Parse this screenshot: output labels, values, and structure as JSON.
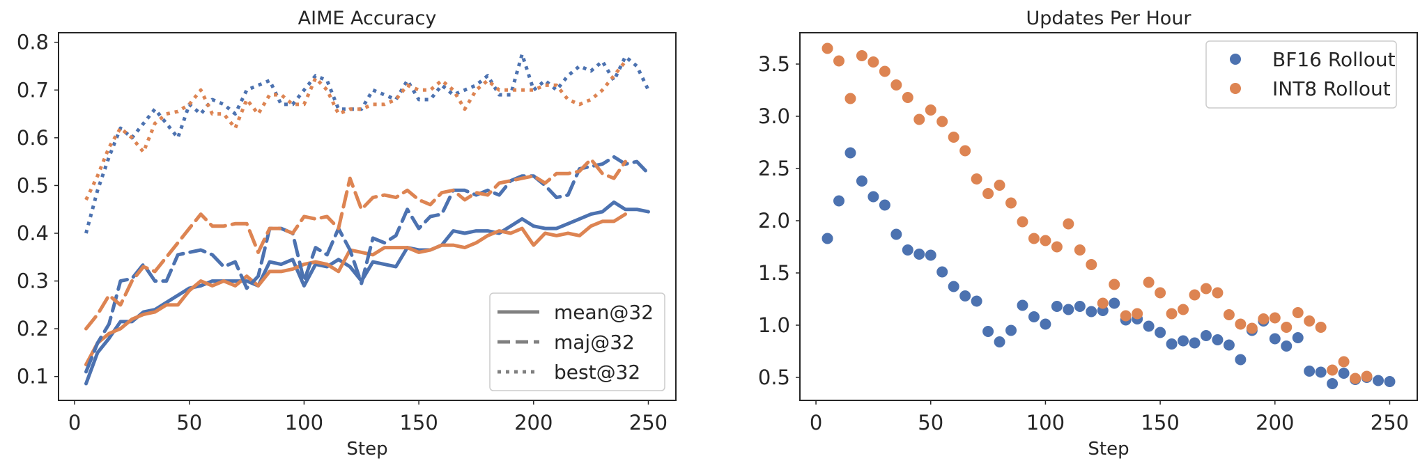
{
  "chart_data": [
    {
      "type": "line",
      "title": "AIME Accuracy",
      "xlabel": "Step",
      "ylabel": "",
      "xlim": [
        -7,
        262
      ],
      "ylim": [
        0.05,
        0.82
      ],
      "xticks": [
        0,
        50,
        100,
        150,
        200,
        250
      ],
      "yticks": [
        0.1,
        0.2,
        0.3,
        0.4,
        0.5,
        0.6,
        0.7,
        0.8
      ],
      "legend_position": "lower-right",
      "grid": false,
      "colors": {
        "blue": "#4c72b0",
        "orange": "#dd8452",
        "legend_line": "#808080"
      },
      "legend": [
        {
          "label": "mean@32",
          "style": "solid"
        },
        {
          "label": "maj@32",
          "style": "dashed"
        },
        {
          "label": "best@32",
          "style": "dotted"
        }
      ],
      "series": [
        {
          "color": "blue",
          "style": "solid",
          "x": [
            5,
            10,
            15,
            20,
            25,
            30,
            35,
            40,
            45,
            50,
            55,
            60,
            65,
            70,
            75,
            80,
            85,
            90,
            95,
            100,
            105,
            110,
            115,
            120,
            125,
            130,
            135,
            140,
            145,
            150,
            155,
            160,
            165,
            170,
            175,
            180,
            185,
            190,
            195,
            200,
            205,
            210,
            215,
            220,
            225,
            230,
            235,
            240,
            245,
            250
          ],
          "y": [
            0.085,
            0.15,
            0.18,
            0.215,
            0.215,
            0.235,
            0.24,
            0.255,
            0.27,
            0.285,
            0.29,
            0.3,
            0.3,
            0.3,
            0.3,
            0.29,
            0.34,
            0.335,
            0.345,
            0.29,
            0.335,
            0.33,
            0.345,
            0.33,
            0.3,
            0.34,
            0.335,
            0.33,
            0.37,
            0.365,
            0.365,
            0.375,
            0.405,
            0.4,
            0.405,
            0.405,
            0.4,
            0.415,
            0.43,
            0.415,
            0.41,
            0.41,
            0.42,
            0.43,
            0.44,
            0.445,
            0.465,
            0.45,
            0.45,
            0.445
          ]
        },
        {
          "color": "orange",
          "style": "solid",
          "x": [
            5,
            10,
            15,
            20,
            25,
            30,
            35,
            40,
            45,
            50,
            55,
            60,
            65,
            70,
            75,
            80,
            85,
            90,
            95,
            100,
            105,
            110,
            115,
            120,
            125,
            130,
            135,
            140,
            145,
            150,
            155,
            160,
            165,
            170,
            175,
            180,
            185,
            190,
            195,
            200,
            205,
            210,
            215,
            220,
            225,
            230,
            235,
            240
          ],
          "y": [
            0.125,
            0.17,
            0.19,
            0.2,
            0.22,
            0.23,
            0.235,
            0.25,
            0.25,
            0.28,
            0.3,
            0.29,
            0.3,
            0.29,
            0.31,
            0.29,
            0.32,
            0.32,
            0.325,
            0.335,
            0.34,
            0.335,
            0.32,
            0.365,
            0.36,
            0.355,
            0.37,
            0.37,
            0.37,
            0.36,
            0.365,
            0.375,
            0.375,
            0.37,
            0.38,
            0.395,
            0.405,
            0.4,
            0.41,
            0.375,
            0.4,
            0.395,
            0.4,
            0.395,
            0.415,
            0.425,
            0.425,
            0.44
          ]
        },
        {
          "color": "blue",
          "style": "dashed",
          "x": [
            5,
            10,
            15,
            20,
            25,
            30,
            35,
            40,
            45,
            50,
            55,
            60,
            65,
            70,
            75,
            80,
            85,
            90,
            95,
            100,
            105,
            110,
            115,
            120,
            125,
            130,
            135,
            140,
            145,
            150,
            155,
            160,
            165,
            170,
            175,
            180,
            185,
            190,
            195,
            200,
            205,
            210,
            215,
            220,
            225,
            230,
            235,
            240,
            245,
            250
          ],
          "y": [
            0.11,
            0.17,
            0.21,
            0.3,
            0.305,
            0.335,
            0.3,
            0.3,
            0.355,
            0.36,
            0.365,
            0.355,
            0.33,
            0.34,
            0.285,
            0.31,
            0.41,
            0.41,
            0.4,
            0.3,
            0.37,
            0.355,
            0.41,
            0.365,
            0.295,
            0.39,
            0.38,
            0.395,
            0.45,
            0.41,
            0.435,
            0.44,
            0.49,
            0.49,
            0.48,
            0.49,
            0.48,
            0.51,
            0.52,
            0.52,
            0.5,
            0.475,
            0.48,
            0.535,
            0.54,
            0.545,
            0.56,
            0.545,
            0.55,
            0.525
          ]
        },
        {
          "color": "orange",
          "style": "dashed",
          "x": [
            5,
            10,
            15,
            20,
            25,
            30,
            35,
            40,
            45,
            50,
            55,
            60,
            65,
            70,
            75,
            80,
            85,
            90,
            95,
            100,
            105,
            110,
            115,
            120,
            125,
            130,
            135,
            140,
            145,
            150,
            155,
            160,
            165,
            170,
            175,
            180,
            185,
            190,
            195,
            200,
            205,
            210,
            215,
            220,
            225,
            230,
            235,
            240
          ],
          "y": [
            0.2,
            0.23,
            0.27,
            0.25,
            0.3,
            0.33,
            0.32,
            0.35,
            0.38,
            0.41,
            0.44,
            0.415,
            0.415,
            0.42,
            0.42,
            0.36,
            0.41,
            0.41,
            0.4,
            0.435,
            0.43,
            0.435,
            0.41,
            0.515,
            0.45,
            0.475,
            0.48,
            0.475,
            0.49,
            0.47,
            0.46,
            0.485,
            0.49,
            0.47,
            0.485,
            0.48,
            0.505,
            0.51,
            0.515,
            0.52,
            0.505,
            0.525,
            0.525,
            0.53,
            0.555,
            0.525,
            0.515,
            0.55
          ]
        },
        {
          "color": "blue",
          "style": "dotted",
          "x": [
            5,
            10,
            15,
            20,
            25,
            30,
            35,
            40,
            45,
            50,
            55,
            60,
            65,
            70,
            75,
            80,
            85,
            90,
            95,
            100,
            105,
            110,
            115,
            120,
            125,
            130,
            135,
            140,
            145,
            150,
            155,
            160,
            165,
            170,
            175,
            180,
            185,
            190,
            195,
            200,
            205,
            210,
            215,
            220,
            225,
            230,
            235,
            240,
            245,
            250
          ],
          "y": [
            0.4,
            0.49,
            0.56,
            0.62,
            0.6,
            0.63,
            0.66,
            0.63,
            0.6,
            0.67,
            0.65,
            0.68,
            0.67,
            0.65,
            0.7,
            0.71,
            0.72,
            0.67,
            0.67,
            0.7,
            0.73,
            0.72,
            0.66,
            0.66,
            0.66,
            0.7,
            0.69,
            0.68,
            0.72,
            0.68,
            0.68,
            0.71,
            0.69,
            0.7,
            0.71,
            0.73,
            0.69,
            0.69,
            0.775,
            0.7,
            0.72,
            0.7,
            0.73,
            0.75,
            0.74,
            0.76,
            0.72,
            0.77,
            0.75,
            0.7
          ]
        },
        {
          "color": "orange",
          "style": "dotted",
          "x": [
            5,
            10,
            15,
            20,
            25,
            30,
            35,
            40,
            45,
            50,
            55,
            60,
            65,
            70,
            75,
            80,
            85,
            90,
            95,
            100,
            105,
            110,
            115,
            120,
            125,
            130,
            135,
            140,
            145,
            150,
            155,
            160,
            165,
            170,
            175,
            180,
            185,
            190,
            195,
            200,
            205,
            210,
            215,
            220,
            225,
            230,
            235,
            240
          ],
          "y": [
            0.47,
            0.52,
            0.58,
            0.62,
            0.6,
            0.57,
            0.63,
            0.65,
            0.655,
            0.67,
            0.7,
            0.65,
            0.65,
            0.62,
            0.68,
            0.65,
            0.69,
            0.69,
            0.67,
            0.67,
            0.725,
            0.7,
            0.65,
            0.66,
            0.66,
            0.67,
            0.67,
            0.68,
            0.71,
            0.7,
            0.7,
            0.72,
            0.7,
            0.66,
            0.7,
            0.72,
            0.7,
            0.7,
            0.7,
            0.7,
            0.71,
            0.71,
            0.68,
            0.67,
            0.68,
            0.7,
            0.73,
            0.76
          ]
        }
      ]
    },
    {
      "type": "scatter",
      "title": "Updates Per Hour",
      "xlabel": "Step",
      "ylabel": "",
      "xlim": [
        -7,
        262
      ],
      "ylim": [
        0.28,
        3.8
      ],
      "xticks": [
        0,
        50,
        100,
        150,
        200,
        250
      ],
      "yticks": [
        0.5,
        1.0,
        1.5,
        2.0,
        2.5,
        3.0,
        3.5
      ],
      "legend_position": "top-right",
      "grid": false,
      "colors": {
        "blue": "#4c72b0",
        "orange": "#dd8452"
      },
      "series": [
        {
          "name": "BF16 Rollout",
          "color": "blue",
          "x": [
            5,
            10,
            15,
            20,
            25,
            30,
            35,
            40,
            45,
            50,
            55,
            60,
            65,
            70,
            75,
            80,
            85,
            90,
            95,
            100,
            105,
            110,
            115,
            120,
            125,
            130,
            135,
            140,
            145,
            150,
            155,
            160,
            165,
            170,
            175,
            180,
            185,
            190,
            195,
            200,
            205,
            210,
            215,
            220,
            225,
            230,
            235,
            240,
            245,
            250
          ],
          "y": [
            1.83,
            2.19,
            2.65,
            2.38,
            2.23,
            2.15,
            1.87,
            1.72,
            1.68,
            1.67,
            1.51,
            1.37,
            1.28,
            1.23,
            0.94,
            0.84,
            0.95,
            1.19,
            1.08,
            1.01,
            1.18,
            1.15,
            1.18,
            1.13,
            1.14,
            1.21,
            1.05,
            1.06,
            0.99,
            0.93,
            0.82,
            0.85,
            0.83,
            0.9,
            0.86,
            0.81,
            0.67,
            0.95,
            1.04,
            0.87,
            0.8,
            0.88,
            0.56,
            0.55,
            0.44,
            0.54,
            0.48,
            0.5,
            0.47,
            0.46
          ]
        },
        {
          "name": "INT8 Rollout",
          "color": "orange",
          "x": [
            5,
            10,
            15,
            20,
            25,
            30,
            35,
            40,
            45,
            50,
            55,
            60,
            65,
            70,
            75,
            80,
            85,
            90,
            95,
            100,
            105,
            110,
            115,
            120,
            125,
            130,
            135,
            140,
            145,
            150,
            155,
            160,
            165,
            170,
            175,
            180,
            185,
            190,
            195,
            200,
            205,
            210,
            215,
            220,
            225,
            230,
            235,
            240
          ],
          "y": [
            3.65,
            3.53,
            3.17,
            3.58,
            3.52,
            3.43,
            3.3,
            3.18,
            2.97,
            3.06,
            2.95,
            2.8,
            2.67,
            2.4,
            2.26,
            2.34,
            2.17,
            1.99,
            1.83,
            1.81,
            1.75,
            1.97,
            1.72,
            1.58,
            1.21,
            1.39,
            1.09,
            1.11,
            1.41,
            1.31,
            1.11,
            1.15,
            1.29,
            1.35,
            1.31,
            1.1,
            1.01,
            0.97,
            1.06,
            1.07,
            0.98,
            1.12,
            1.04,
            0.98,
            0.57,
            0.65,
            0.49,
            0.51
          ]
        }
      ]
    }
  ]
}
